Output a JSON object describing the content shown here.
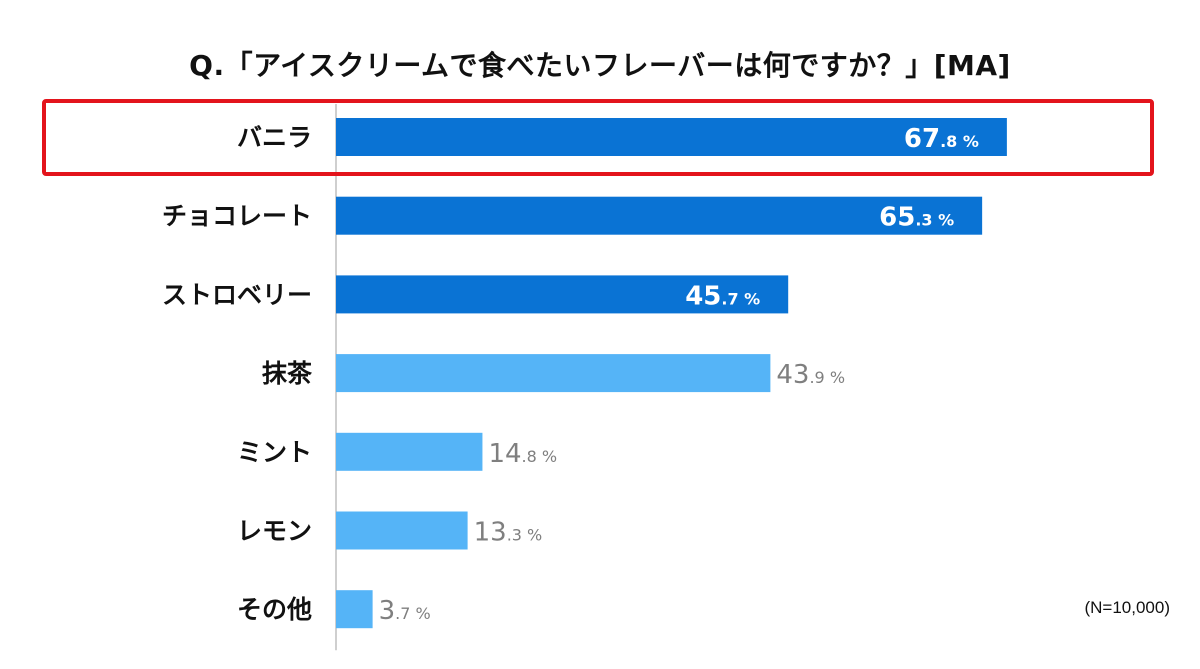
{
  "chart_data": {
    "type": "bar",
    "orientation": "horizontal",
    "title": "Q.「アイスクリームで食べたいフレーバーは何ですか？」[MA]",
    "categories": [
      "バニラ",
      "チョコレート",
      "ストロベリー",
      "抹茶",
      "ミント",
      "レモン",
      "その他"
    ],
    "values": [
      67.8,
      65.3,
      45.7,
      43.9,
      14.8,
      13.3,
      3.7
    ],
    "value_unit": "%",
    "highlighted_top_n": 3,
    "highlighted_category": "バニラ",
    "xlim": [
      0,
      100
    ],
    "xlabel": "",
    "ylabel": "",
    "grid": false,
    "note": "(N=10,000)"
  },
  "colors": {
    "top_bar": "#0a73d4",
    "other_bar": "#55b4f7",
    "highlight_frame": "#e3141c",
    "axis_line": "#bfbfbf",
    "inside_label": "#ffffff",
    "outside_label": "#7f7f7f",
    "category_label": "#111111"
  }
}
